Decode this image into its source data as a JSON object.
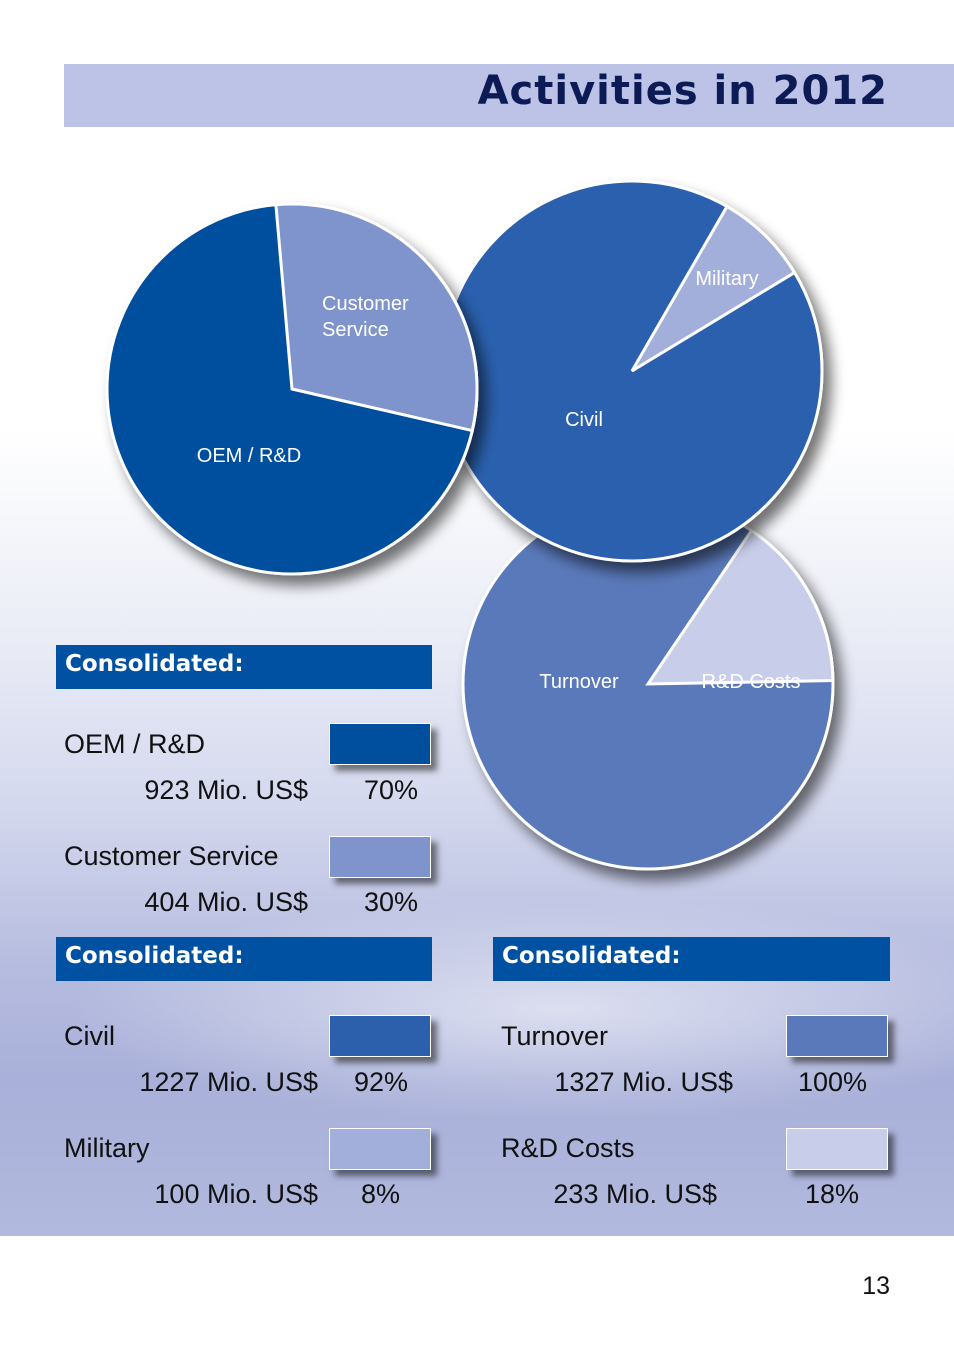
{
  "page": {
    "title": "Activities in 2012",
    "page_number": "13"
  },
  "colors": {
    "oem": "#004f9f",
    "customer_service": "#7f93cc",
    "civil": "#2c60ad",
    "military": "#a3afdb",
    "turnover": "#5a79ba",
    "rd_costs": "#c8cdea",
    "header_blue": "#0051a1"
  },
  "chart_data": [
    {
      "type": "pie",
      "title": "",
      "series": [
        {
          "values": [
            70,
            30
          ]
        }
      ],
      "categories": [
        "OEM / R&D",
        "Customer Service"
      ],
      "slice_labels": [
        "OEM / R&D",
        "Customer Service"
      ],
      "slice_colors": [
        "#004f9f",
        "#7f93cc"
      ]
    },
    {
      "type": "pie",
      "title": "",
      "series": [
        {
          "values": [
            92,
            8
          ]
        }
      ],
      "categories": [
        "Civil",
        "Military"
      ],
      "slice_labels": [
        "Civil",
        "Military"
      ],
      "slice_colors": [
        "#2c60ad",
        "#a3afdb"
      ]
    },
    {
      "type": "pie",
      "title": "",
      "series": [
        {
          "values": [
            100,
            18
          ]
        }
      ],
      "categories": [
        "Turnover",
        "R&D Costs"
      ],
      "slice_labels": [
        "Turnover",
        "R&D Costs"
      ],
      "slice_colors": [
        "#5a79ba",
        "#c8cdea"
      ]
    }
  ],
  "panels": [
    {
      "header": "Consolidated:",
      "rows": [
        {
          "label": "OEM / R&D",
          "value": "923 Mio. US$",
          "pct": "70%",
          "color": "#004f9f"
        },
        {
          "label": "Customer Service",
          "value": "404 Mio. US$",
          "pct": "30%",
          "color": "#7f93cc"
        }
      ]
    },
    {
      "header": "Consolidated:",
      "rows": [
        {
          "label": "Civil",
          "value": "1227 Mio. US$",
          "pct": "92%",
          "color": "#2c60ad"
        },
        {
          "label": "Military",
          "value": "100 Mio. US$",
          "pct": "8%",
          "color": "#a3afdb"
        }
      ]
    },
    {
      "header": "Consolidated:",
      "rows": [
        {
          "label": "Turnover",
          "value": "1327 Mio. US$",
          "pct": "100%",
          "color": "#5a79ba"
        },
        {
          "label": "R&D Costs",
          "value": "233 Mio. US$",
          "pct": "18%",
          "color": "#c8cdea"
        }
      ]
    }
  ]
}
